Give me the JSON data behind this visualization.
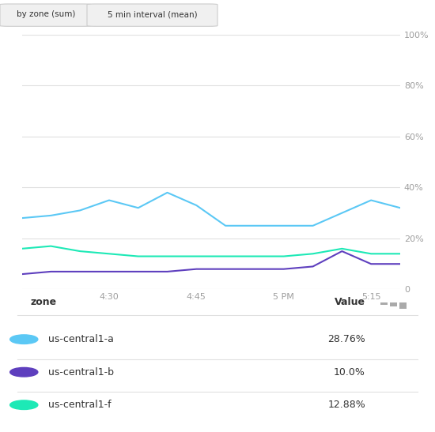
{
  "title_buttons": [
    "by zone (sum)",
    "5 min interval (mean)"
  ],
  "x_ticks_labels": [
    "4:30",
    "4:45",
    "5 PM",
    "5:15"
  ],
  "x_ticks_positions": [
    3,
    6,
    9,
    12
  ],
  "y_ticks": [
    0,
    20,
    40,
    60,
    80,
    100
  ],
  "y_tick_labels": [
    "0",
    "20%",
    "40%",
    "60%",
    "80%",
    "100%"
  ],
  "series": {
    "us-central1-a": {
      "color": "#5bc8f5",
      "value": "28.76%",
      "x": [
        0,
        1,
        2,
        3,
        4,
        5,
        6,
        7,
        8,
        9,
        10,
        11,
        12,
        13
      ],
      "y": [
        28,
        29,
        31,
        35,
        32,
        38,
        33,
        25,
        25,
        25,
        25,
        30,
        35,
        32
      ]
    },
    "us-central1-b": {
      "color": "#5e3fbe",
      "value": "10.0%",
      "x": [
        0,
        1,
        2,
        3,
        4,
        5,
        6,
        7,
        8,
        9,
        10,
        11,
        12,
        13
      ],
      "y": [
        6,
        7,
        7,
        7,
        7,
        7,
        8,
        8,
        8,
        8,
        9,
        15,
        10,
        10
      ]
    },
    "us-central1-f": {
      "color": "#1de9b6",
      "value": "12.88%",
      "x": [
        0,
        1,
        2,
        3,
        4,
        5,
        6,
        7,
        8,
        9,
        10,
        11,
        12,
        13
      ],
      "y": [
        16,
        17,
        15,
        14,
        13,
        13,
        13,
        13,
        13,
        13,
        14,
        16,
        14,
        14
      ]
    }
  },
  "legend_rows": [
    {
      "label": "us-central1-a",
      "color": "#5bc8f5",
      "value": "28.76%"
    },
    {
      "label": "us-central1-b",
      "color": "#5e3fbe",
      "value": "10.0%"
    },
    {
      "label": "us-central1-f",
      "color": "#1de9b6",
      "value": "12.88%"
    }
  ],
  "bg_color": "#ffffff",
  "grid_color": "#e0e0e0",
  "axis_label_color": "#9e9e9e"
}
